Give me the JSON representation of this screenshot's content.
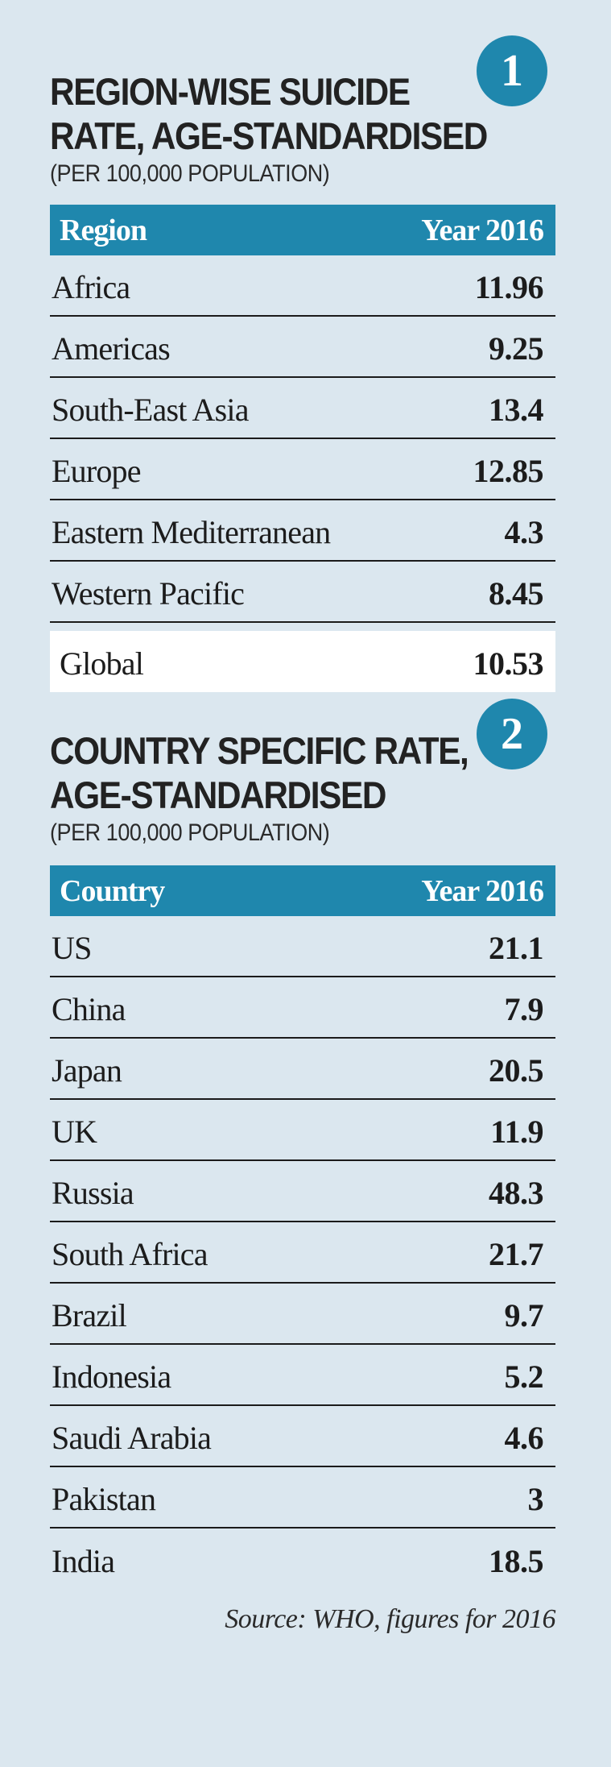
{
  "section1": {
    "badge": "1",
    "title_line1": "REGION-WISE SUICIDE",
    "title_line2": "RATE, AGE-STANDARDISED",
    "subtitle": "(PER 100,000 POPULATION)",
    "columns": [
      "Region",
      "Year 2016"
    ],
    "rows": [
      {
        "label": "Africa",
        "value": "11.96"
      },
      {
        "label": "Americas",
        "value": "9.25"
      },
      {
        "label": "South-East Asia",
        "value": "13.4"
      },
      {
        "label": "Europe",
        "value": "12.85"
      },
      {
        "label": "Eastern Mediterranean",
        "value": "4.3"
      },
      {
        "label": "Western Pacific",
        "value": "8.45"
      }
    ],
    "total": {
      "label": "Global",
      "value": "10.53"
    }
  },
  "section2": {
    "badge": "2",
    "title_line1": "COUNTRY SPECIFIC RATE,",
    "title_line2": "AGE-STANDARDISED",
    "subtitle": "(PER 100,000 POPULATION)",
    "columns": [
      "Country",
      "Year 2016"
    ],
    "rows": [
      {
        "label": "US",
        "value": "21.1"
      },
      {
        "label": "China",
        "value": "7.9"
      },
      {
        "label": "Japan",
        "value": "20.5"
      },
      {
        "label": "UK",
        "value": "11.9"
      },
      {
        "label": "Russia",
        "value": "48.3"
      },
      {
        "label": "South Africa",
        "value": "21.7"
      },
      {
        "label": "Brazil",
        "value": "9.7"
      },
      {
        "label": "Indonesia",
        "value": "5.2"
      },
      {
        "label": "Saudi Arabia",
        "value": "4.6"
      },
      {
        "label": "Pakistan",
        "value": "3"
      },
      {
        "label": "India",
        "value": "18.5"
      }
    ]
  },
  "source": "Source: WHO, figures for 2016",
  "colors": {
    "background": "#dbe7ef",
    "accent": "#1f87ad",
    "text": "#1c1c1c",
    "highlight_row": "#ffffff"
  }
}
